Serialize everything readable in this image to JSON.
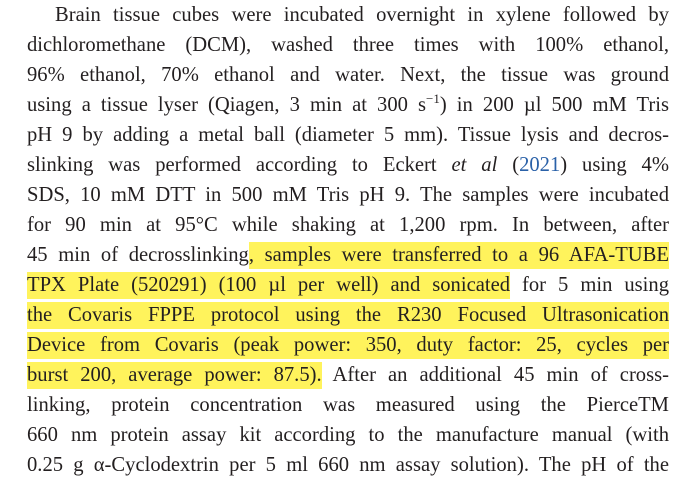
{
  "colors": {
    "text": "#231f20",
    "highlight": "#fff35c",
    "citation_link": "#2a61a8"
  },
  "paragraph": {
    "l1": "Brain tissue cubes were incubated overnight in xylene followed by",
    "l2": "dichloromethane (DCM), washed three times with 100% ethanol,",
    "l3": "96% ethanol, 70% ethanol and water. Next, the tissue was ground",
    "l4_a": "using a tissue lyser (Qiagen, 3 min at 300 s",
    "l4_sup": "−1",
    "l4_b": ") in 200 µl 500 mM Tris",
    "l5": "pH 9 by adding a metal ball (diameter 5 mm). Tissue lysis and decros-",
    "l6_a": "slinking was performed according to Eckert ",
    "l6_etal": "et al",
    "l6_sp": " (",
    "l6_year": "2021",
    "l6_b": ") using 4%",
    "l7": "SDS, 10 mM DTT in 500 mM Tris pH 9. The samples were incubated",
    "l8": "for 90 min at 95°C while shaking at 1,200 rpm. In between, after",
    "l9_a": "45 min of decrosslinking",
    "l9_hl": ", samples were transferred to a 96 AFA-TUBE",
    "l10_hl": "TPX Plate (520291) (100 µl per well) and sonicated",
    "l10_b": " for 5 min using",
    "l11_hl": "the Covaris FPPE protocol using the R230 Focused Ultrasonication",
    "l12_hl": "Device from Covaris (peak power: 350, duty factor: 25, cycles per",
    "l13_hl": "burst 200, average power: 87.5).",
    "l13_b": " After an additional 45 min of cross-",
    "l14": "linking, protein concentration was measured using the PierceTM",
    "l15": "660 nm protein assay kit according to the manufacture manual (with",
    "l16": "0.25 g α-Cyclodextrin per 5 ml 660 nm assay solution). The pH of the"
  }
}
